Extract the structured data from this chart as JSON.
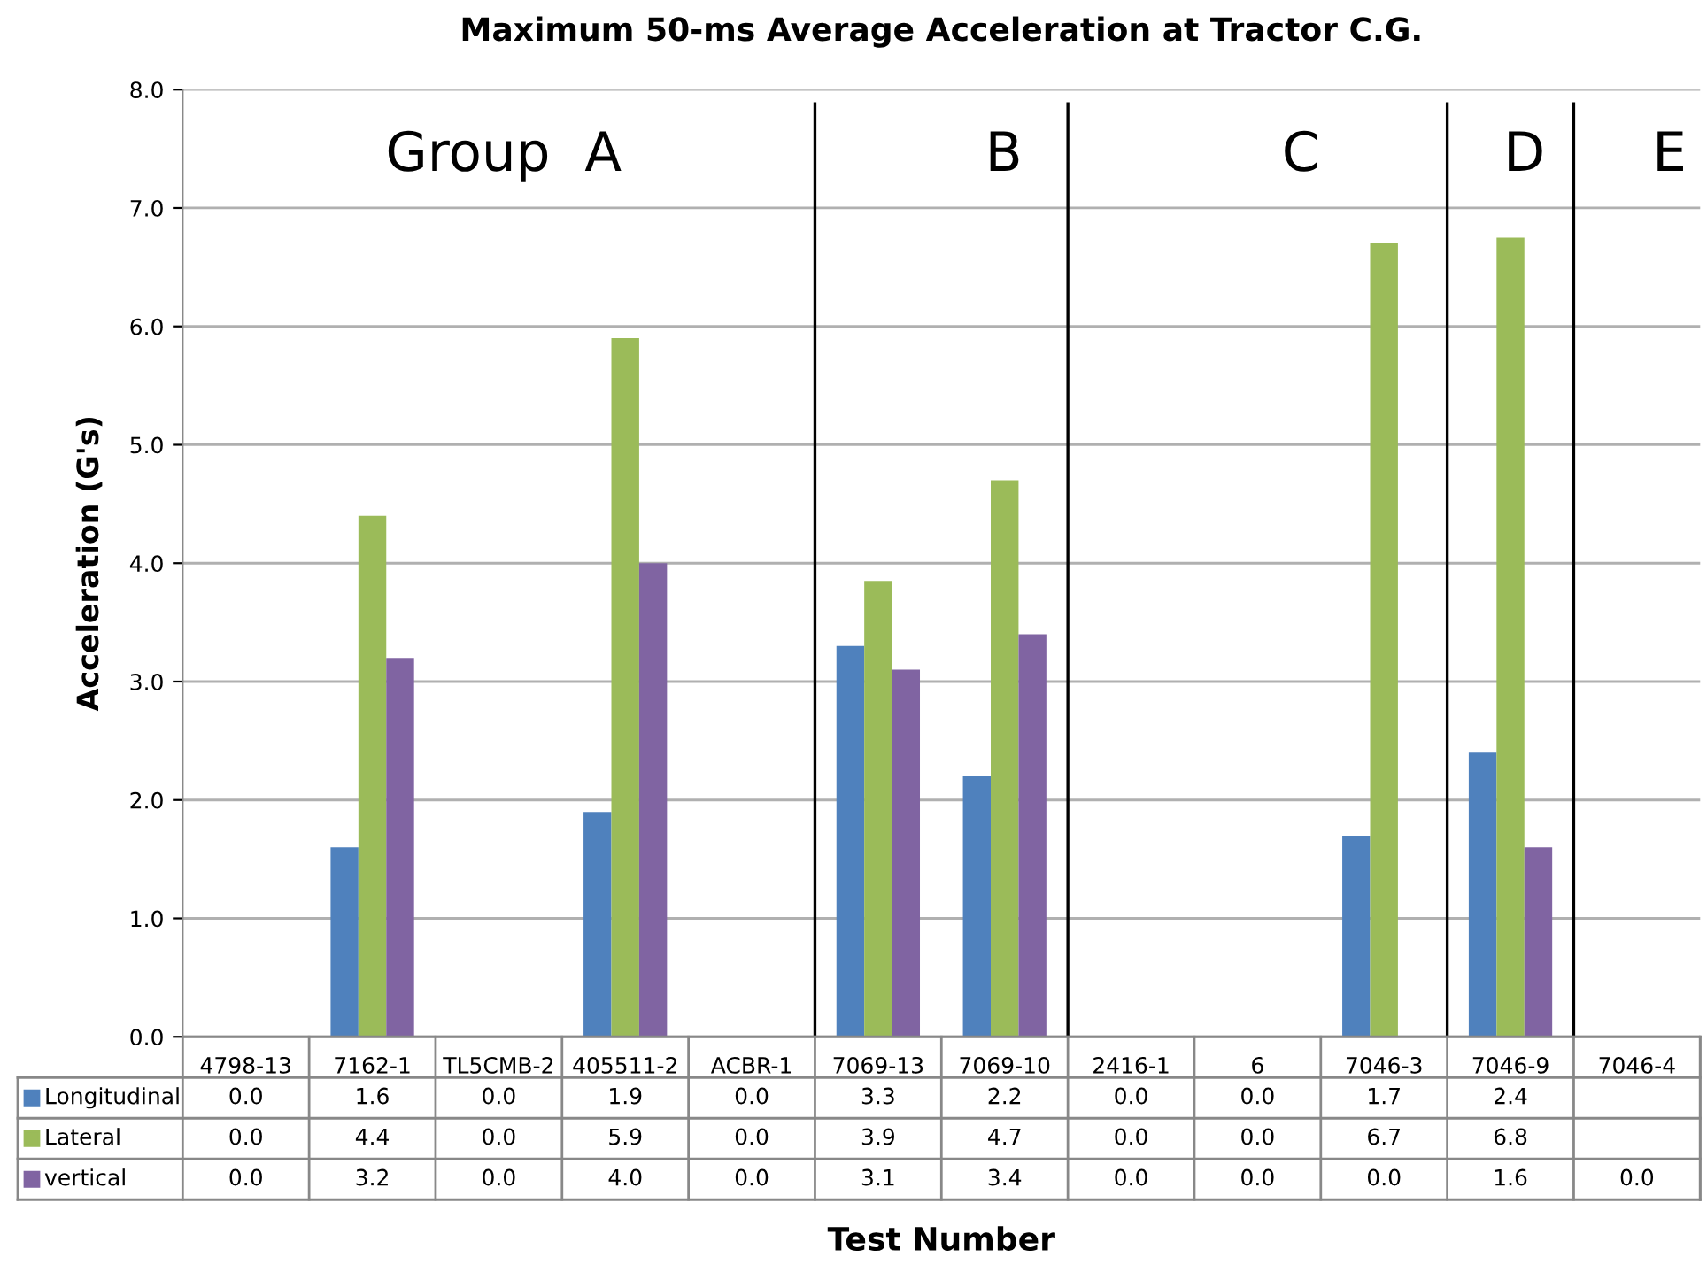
{
  "chart_data": {
    "type": "bar",
    "title": "Maximum 50-ms Average Acceleration at Tractor C.G.",
    "xlabel": "Test Number",
    "ylabel": "Acceleration (G's)",
    "categories": [
      "4798-13",
      "7162-1",
      "TL5CMB-2",
      "405511-2",
      "ACBR-1",
      "7069-13",
      "7069-10",
      "2416-1",
      "6",
      "7046-3",
      "7046-9",
      "7046-4"
    ],
    "series": [
      {
        "name": "Longitudinal",
        "color": "#4f81bd",
        "values": [
          0.0,
          1.6,
          0.0,
          1.9,
          0.0,
          3.3,
          2.2,
          0.0,
          0.0,
          1.7,
          2.4,
          null
        ],
        "value_labels": [
          "0.0",
          "1.6",
          "0.0",
          "1.9",
          "0.0",
          "3.3",
          "2.2",
          "0.0",
          "0.0",
          "1.7",
          "2.4",
          null
        ]
      },
      {
        "name": "Lateral",
        "color": "#9bbb59",
        "values": [
          0.0,
          4.4,
          0.0,
          5.9,
          0.0,
          3.85,
          4.7,
          0.0,
          0.0,
          6.7,
          6.75,
          null
        ],
        "value_labels": [
          "0.0",
          "4.4",
          "0.0",
          "5.9",
          "0.0",
          "3.9",
          "4.7",
          "0.0",
          "0.0",
          "6.7",
          "6.8",
          null
        ]
      },
      {
        "name": "vertical",
        "color": "#8064a2",
        "values": [
          0.0,
          3.2,
          0.0,
          4.0,
          0.0,
          3.1,
          3.4,
          0.0,
          0.0,
          0.0,
          1.6,
          0.0
        ],
        "value_labels": [
          "0.0",
          "3.2",
          "0.0",
          "4.0",
          "0.0",
          "3.1",
          "3.4",
          "0.0",
          "0.0",
          "0.0",
          "1.6",
          "0.0"
        ]
      }
    ],
    "ylim": [
      0,
      8
    ],
    "yticks": [
      {
        "value": 0,
        "label": "0.0"
      },
      {
        "value": 1,
        "label": "1.0"
      },
      {
        "value": 2,
        "label": "2.0"
      },
      {
        "value": 3,
        "label": "3.0"
      },
      {
        "value": 4,
        "label": "4.0"
      },
      {
        "value": 5,
        "label": "5.0"
      },
      {
        "value": 6,
        "label": "6.0"
      },
      {
        "value": 7,
        "label": "7.0"
      },
      {
        "value": 8,
        "label": "8.0"
      }
    ],
    "annotations": [
      "Group  A",
      "B",
      "C",
      "D",
      "E"
    ],
    "grid": "y",
    "legend": "bottom left"
  }
}
